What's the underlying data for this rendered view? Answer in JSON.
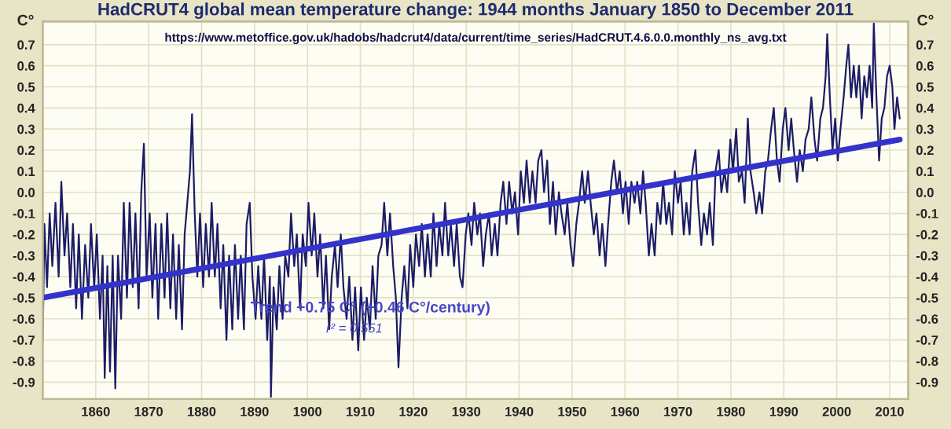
{
  "chart_data": {
    "type": "line",
    "title": "HadCRUT4 global mean temperature change: 1944 months January 1850 to December 2011",
    "ylabel": "C°",
    "y2label": "C°",
    "annotations": [
      "https://www.metoffice.gov.uk/hadobs/hadcrut4/data/current/time_series/HadCRUT.4.6.0.0.monthly_ns_avg.txt",
      "Trend +0.75 C° (+0.46 C°/century)",
      "r² = 0.551"
    ],
    "xlim": [
      1850,
      2013.5
    ],
    "xticks": [
      1860,
      1870,
      1880,
      1890,
      1900,
      1910,
      1920,
      1930,
      1940,
      1950,
      1960,
      1970,
      1980,
      1990,
      2000,
      2010
    ],
    "ylim": [
      -0.98,
      0.81
    ],
    "yticks": [
      {
        "value": -0.9,
        "label": "-0.9"
      },
      {
        "value": -0.8,
        "label": "-0.8"
      },
      {
        "value": -0.7,
        "label": "-0.7"
      },
      {
        "value": -0.6,
        "label": "-0.6"
      },
      {
        "value": -0.5,
        "label": "-0.5"
      },
      {
        "value": -0.4,
        "label": "-0.4"
      },
      {
        "value": -0.3,
        "label": "-0.3"
      },
      {
        "value": -0.2,
        "label": "-0.2"
      },
      {
        "value": -0.1,
        "label": "-0.1"
      },
      {
        "value": 0,
        "label": "0.0"
      },
      0.1,
      0.2,
      0.3,
      0.4,
      0.5,
      0.6,
      0.7
    ],
    "y2lim": [
      -0.98,
      0.81
    ],
    "y2ticks": [
      {
        "value": -0.9,
        "label": "-0.9"
      },
      {
        "value": -0.8,
        "label": "-0.8"
      },
      {
        "value": -0.7,
        "label": "-0.7"
      },
      {
        "value": -0.6,
        "label": "-0.6"
      },
      {
        "value": -0.5,
        "label": "-0.5"
      },
      {
        "value": -0.4,
        "label": "-0.4"
      },
      {
        "value": -0.3,
        "label": "-0.3"
      },
      {
        "value": -0.2,
        "label": "-0.2"
      },
      {
        "value": -0.1,
        "label": "-0.1"
      },
      {
        "value": 0,
        "label": "0.0"
      },
      0.1,
      0.2,
      0.3,
      0.4,
      0.5,
      0.6,
      0.7
    ],
    "grid": true,
    "legend": false,
    "marker": "none",
    "line_style": "solid",
    "series": [
      {
        "color": "#1c1c66",
        "x": [
          1850.0,
          1850.3,
          1850.8,
          1851.3,
          1851.8,
          1852.4,
          1853.0,
          1853.5,
          1854.1,
          1854.6,
          1855.2,
          1855.7,
          1856.3,
          1856.8,
          1857.4,
          1858.0,
          1858.6,
          1859.1,
          1859.7,
          1860.2,
          1860.8,
          1861.3,
          1861.7,
          1862.2,
          1862.7,
          1863.2,
          1863.7,
          1864.2,
          1864.8,
          1865.3,
          1865.9,
          1866.4,
          1867.0,
          1867.5,
          1868.1,
          1868.6,
          1869.1,
          1869.6,
          1870.2,
          1870.7,
          1871.3,
          1871.8,
          1872.4,
          1873.0,
          1873.5,
          1874.1,
          1874.6,
          1875.2,
          1875.7,
          1876.3,
          1876.8,
          1877.3,
          1877.8,
          1878.2,
          1878.7,
          1879.2,
          1879.7,
          1880.3,
          1880.8,
          1881.4,
          1881.9,
          1882.5,
          1883.0,
          1883.6,
          1884.1,
          1884.7,
          1885.2,
          1885.8,
          1886.3,
          1886.9,
          1887.4,
          1888.0,
          1888.5,
          1889.1,
          1889.6,
          1890.2,
          1890.7,
          1891.3,
          1891.8,
          1892.4,
          1892.9,
          1893.1,
          1893.6,
          1894.2,
          1894.7,
          1895.3,
          1895.8,
          1896.4,
          1896.9,
          1897.5,
          1898.0,
          1898.6,
          1899.1,
          1899.7,
          1900.2,
          1900.8,
          1901.3,
          1901.9,
          1902.4,
          1903.0,
          1903.5,
          1904.1,
          1904.6,
          1905.2,
          1905.7,
          1906.3,
          1906.8,
          1907.4,
          1907.9,
          1908.5,
          1909.0,
          1909.6,
          1910.1,
          1910.7,
          1911.2,
          1911.8,
          1912.3,
          1912.9,
          1913.4,
          1914.0,
          1914.5,
          1915.1,
          1915.6,
          1916.2,
          1916.7,
          1917.2,
          1917.8,
          1918.3,
          1918.9,
          1919.4,
          1920.0,
          1920.5,
          1921.1,
          1921.6,
          1922.2,
          1922.7,
          1923.3,
          1923.8,
          1924.4,
          1924.9,
          1925.5,
          1926.0,
          1926.6,
          1927.1,
          1927.7,
          1928.2,
          1928.8,
          1929.3,
          1929.9,
          1930.4,
          1931.0,
          1931.5,
          1932.1,
          1932.6,
          1933.2,
          1933.7,
          1934.3,
          1934.8,
          1935.4,
          1935.9,
          1936.5,
          1937.0,
          1937.6,
          1938.1,
          1938.7,
          1939.2,
          1939.8,
          1940.3,
          1940.9,
          1941.4,
          1942.0,
          1942.5,
          1943.1,
          1943.6,
          1944.2,
          1944.7,
          1945.3,
          1945.8,
          1946.4,
          1946.9,
          1947.5,
          1948.0,
          1948.6,
          1949.1,
          1949.7,
          1950.2,
          1950.8,
          1951.3,
          1951.9,
          1952.4,
          1953.0,
          1953.5,
          1954.1,
          1954.6,
          1955.2,
          1955.7,
          1956.3,
          1956.8,
          1957.4,
          1957.9,
          1958.5,
          1959.0,
          1959.6,
          1960.1,
          1960.7,
          1961.2,
          1961.8,
          1962.3,
          1962.9,
          1963.4,
          1963.9,
          1964.5,
          1965.0,
          1965.6,
          1966.1,
          1966.7,
          1967.2,
          1967.8,
          1968.3,
          1968.9,
          1969.4,
          1970.0,
          1970.5,
          1971.1,
          1971.6,
          1972.2,
          1972.7,
          1973.3,
          1973.8,
          1974.4,
          1974.9,
          1975.5,
          1976.0,
          1976.6,
          1977.1,
          1977.7,
          1978.2,
          1978.8,
          1979.3,
          1979.9,
          1980.4,
          1981.0,
          1981.5,
          1982.1,
          1982.6,
          1983.2,
          1983.7,
          1984.3,
          1984.8,
          1985.4,
          1985.9,
          1986.5,
          1987.0,
          1987.6,
          1988.1,
          1988.7,
          1989.2,
          1989.8,
          1990.3,
          1990.9,
          1991.4,
          1991.9,
          1992.5,
          1993.0,
          1993.6,
          1994.1,
          1994.7,
          1995.2,
          1995.8,
          1996.3,
          1996.9,
          1997.4,
          1997.9,
          1998.2,
          1998.7,
          1999.2,
          1999.7,
          2000.2,
          2000.7,
          2001.3,
          2001.8,
          2002.2,
          2002.7,
          2003.2,
          2003.7,
          2004.2,
          2004.7,
          2005.2,
          2005.7,
          2006.2,
          2006.7,
          2007.0,
          2007.5,
          2008.0,
          2008.5,
          2009.0,
          2009.5,
          2010.0,
          2010.5,
          2010.9,
          2011.4,
          2011.9
        ],
        "values": [
          -0.7,
          -0.15,
          -0.45,
          -0.1,
          -0.35,
          -0.05,
          -0.4,
          0.05,
          -0.3,
          -0.1,
          -0.45,
          -0.15,
          -0.55,
          -0.2,
          -0.6,
          -0.25,
          -0.5,
          -0.15,
          -0.45,
          -0.2,
          -0.6,
          -0.3,
          -0.88,
          -0.35,
          -0.85,
          -0.3,
          -0.93,
          -0.3,
          -0.6,
          -0.05,
          -0.5,
          -0.05,
          -0.45,
          -0.1,
          -0.55,
          0.0,
          0.23,
          -0.4,
          -0.1,
          -0.5,
          -0.15,
          -0.6,
          -0.15,
          -0.5,
          -0.1,
          -0.55,
          -0.2,
          -0.6,
          -0.25,
          -0.65,
          -0.2,
          -0.05,
          0.1,
          0.37,
          -0.1,
          -0.4,
          -0.1,
          -0.45,
          -0.15,
          -0.4,
          -0.05,
          -0.4,
          -0.15,
          -0.55,
          -0.25,
          -0.7,
          -0.3,
          -0.65,
          -0.25,
          -0.6,
          -0.3,
          -0.65,
          -0.15,
          -0.05,
          -0.4,
          -0.6,
          -0.35,
          -0.6,
          -0.3,
          -0.7,
          -0.4,
          -0.97,
          -0.45,
          -0.65,
          -0.35,
          -0.6,
          -0.3,
          -0.4,
          -0.1,
          -0.35,
          -0.2,
          -0.55,
          -0.2,
          -0.35,
          -0.05,
          -0.3,
          -0.1,
          -0.4,
          -0.2,
          -0.55,
          -0.3,
          -0.65,
          -0.4,
          -0.25,
          -0.45,
          -0.2,
          -0.45,
          -0.6,
          -0.4,
          -0.7,
          -0.45,
          -0.75,
          -0.45,
          -0.7,
          -0.5,
          -0.65,
          -0.35,
          -0.6,
          -0.3,
          -0.25,
          -0.05,
          -0.3,
          -0.1,
          -0.35,
          -0.5,
          -0.83,
          -0.5,
          -0.35,
          -0.55,
          -0.25,
          -0.45,
          -0.2,
          -0.35,
          -0.15,
          -0.4,
          -0.2,
          -0.4,
          -0.1,
          -0.35,
          -0.15,
          -0.3,
          -0.05,
          -0.3,
          -0.15,
          -0.35,
          -0.15,
          -0.4,
          -0.45,
          -0.2,
          -0.1,
          -0.25,
          -0.05,
          -0.2,
          -0.1,
          -0.35,
          -0.2,
          -0.1,
          -0.3,
          -0.15,
          -0.3,
          -0.05,
          0.05,
          -0.15,
          0.05,
          -0.1,
          0.0,
          -0.2,
          0.1,
          -0.05,
          0.15,
          -0.05,
          0.1,
          -0.05,
          0.15,
          0.2,
          0.0,
          0.15,
          -0.15,
          0.05,
          -0.2,
          0.0,
          -0.1,
          -0.2,
          -0.05,
          -0.25,
          -0.35,
          -0.15,
          -0.05,
          0.1,
          -0.05,
          0.1,
          -0.05,
          -0.2,
          -0.1,
          -0.3,
          -0.15,
          -0.35,
          -0.15,
          0.05,
          0.15,
          0.0,
          0.1,
          -0.1,
          0.05,
          -0.15,
          0.05,
          -0.05,
          0.05,
          -0.1,
          0.1,
          -0.05,
          -0.3,
          -0.15,
          -0.3,
          -0.05,
          -0.15,
          0.05,
          -0.15,
          -0.05,
          -0.2,
          0.1,
          -0.05,
          0.05,
          -0.2,
          -0.05,
          -0.2,
          0.1,
          0.2,
          -0.05,
          -0.25,
          -0.1,
          -0.2,
          -0.05,
          -0.25,
          0.1,
          0.2,
          0.0,
          0.1,
          0.0,
          0.25,
          0.1,
          0.3,
          0.05,
          0.1,
          -0.05,
          0.35,
          0.1,
          0.0,
          -0.1,
          0.0,
          -0.1,
          0.1,
          0.15,
          0.3,
          0.4,
          0.15,
          0.05,
          0.3,
          0.4,
          0.2,
          0.35,
          0.2,
          0.05,
          0.2,
          0.1,
          0.25,
          0.3,
          0.45,
          0.25,
          0.15,
          0.35,
          0.4,
          0.55,
          0.75,
          0.45,
          0.2,
          0.35,
          0.15,
          0.3,
          0.45,
          0.6,
          0.7,
          0.45,
          0.6,
          0.45,
          0.6,
          0.35,
          0.55,
          0.45,
          0.6,
          0.4,
          0.8,
          0.45,
          0.15,
          0.35,
          0.4,
          0.55,
          0.6,
          0.5,
          0.3,
          0.45,
          0.35
        ]
      },
      {
        "color": "#3333cc",
        "x": [
          1850.0,
          2011.9
        ],
        "values": [
          -0.5,
          0.25
        ]
      }
    ]
  }
}
